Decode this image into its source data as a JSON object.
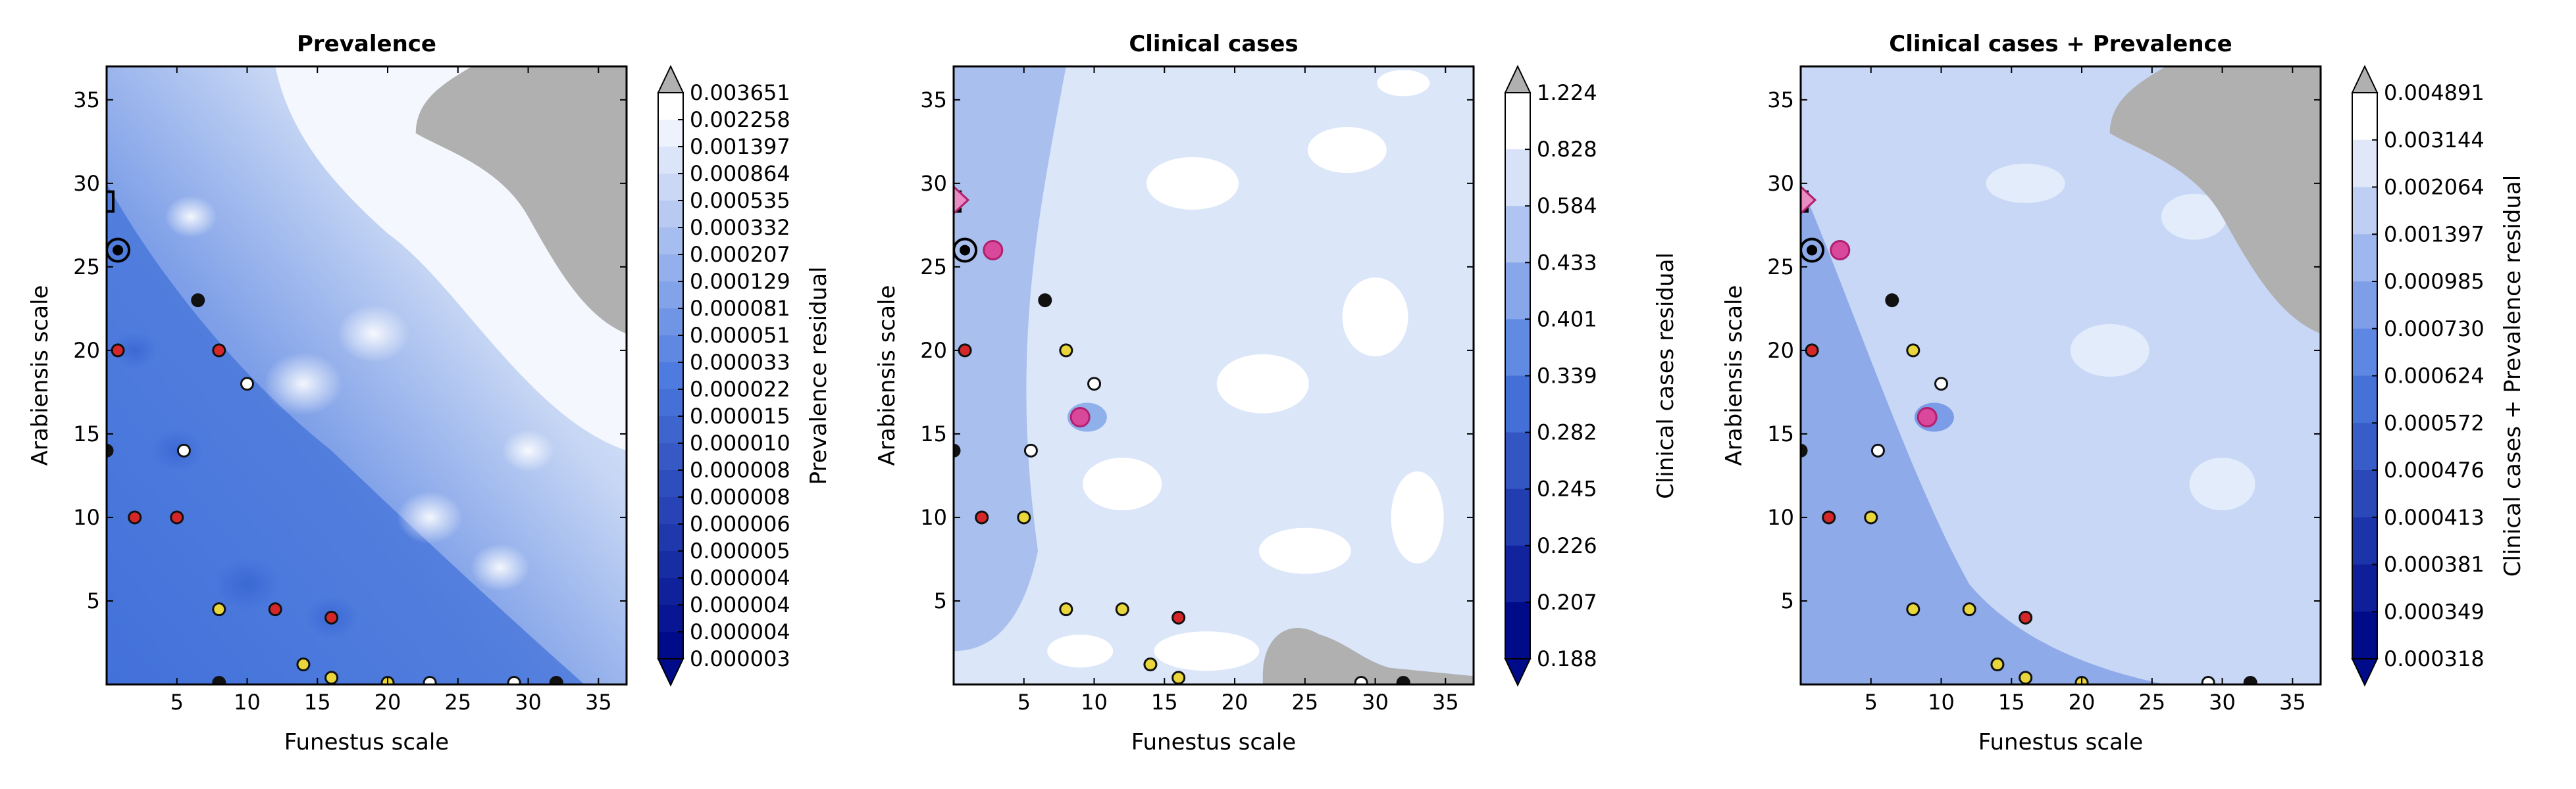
{
  "chart_data": [
    {
      "type": "heatmap",
      "title": "Prevalence",
      "xlabel": "Funestus scale",
      "ylabel": "Arabiensis scale",
      "xlim": [
        0,
        37
      ],
      "ylim": [
        0,
        37
      ],
      "xticks": [
        "5",
        "10",
        "15",
        "20",
        "25",
        "30",
        "35"
      ],
      "yticks": [
        "5",
        "10",
        "15",
        "20",
        "25",
        "30",
        "35"
      ],
      "colorbar_label": "Prevalence residual",
      "colorbar_ticks": [
        "0.003651",
        "0.002258",
        "0.001397",
        "0.000864",
        "0.000535",
        "0.000332",
        "0.000207",
        "0.000129",
        "0.000081",
        "0.000051",
        "0.000033",
        "0.000022",
        "0.000015",
        "0.000010",
        "0.000008",
        "0.000008",
        "0.000006",
        "0.000005",
        "0.000004",
        "0.000004",
        "0.000004",
        "0.000003"
      ],
      "colorbar_extend": "both",
      "pattern": "prev",
      "markers": [
        {
          "x": 8,
          "y": 20,
          "c": "red"
        },
        {
          "x": 6.5,
          "y": 23,
          "c": "black"
        },
        {
          "x": 10,
          "y": 18,
          "c": "white"
        },
        {
          "x": 5.5,
          "y": 14,
          "c": "white"
        },
        {
          "x": 2,
          "y": 10,
          "c": "red"
        },
        {
          "x": 5,
          "y": 10,
          "c": "red"
        },
        {
          "x": 8,
          "y": 4.5,
          "c": "yellow"
        },
        {
          "x": 12,
          "y": 4.5,
          "c": "red"
        },
        {
          "x": 16,
          "y": 4,
          "c": "red"
        },
        {
          "x": 14,
          "y": 1.2,
          "c": "yellow"
        },
        {
          "x": 16,
          "y": 0.4,
          "c": "yellow"
        },
        {
          "x": 0.8,
          "y": 20,
          "c": "red"
        },
        {
          "x": 0,
          "y": 14,
          "c": "black"
        },
        {
          "x": 20,
          "y": 0.1,
          "c": "yellow"
        },
        {
          "x": 29,
          "y": 0.1,
          "c": "white"
        },
        {
          "x": 32,
          "y": 0.1,
          "c": "black"
        },
        {
          "x": 23,
          "y": 0.1,
          "c": "white"
        },
        {
          "x": 8,
          "y": 0.1,
          "c": "black"
        }
      ]
    },
    {
      "type": "heatmap",
      "title": "Clinical cases",
      "xlabel": "Funestus scale",
      "ylabel": "Arabiensis scale",
      "xlim": [
        0,
        37
      ],
      "ylim": [
        0,
        37
      ],
      "xticks": [
        "5",
        "10",
        "15",
        "20",
        "25",
        "30",
        "35"
      ],
      "yticks": [
        "5",
        "10",
        "15",
        "20",
        "25",
        "30",
        "35"
      ],
      "colorbar_label": "Clinical cases residual",
      "colorbar_ticks": [
        "1.224",
        "0.828",
        "0.584",
        "0.433",
        "0.401",
        "0.339",
        "0.282",
        "0.245",
        "0.226",
        "0.207",
        "0.188"
      ],
      "colorbar_extend": "both",
      "pattern": "clin",
      "markers": [
        {
          "x": 6.5,
          "y": 23,
          "c": "black"
        },
        {
          "x": 8,
          "y": 20,
          "c": "yellow"
        },
        {
          "x": 10,
          "y": 18,
          "c": "white"
        },
        {
          "x": 5.5,
          "y": 14,
          "c": "white"
        },
        {
          "x": 9,
          "y": 16,
          "c": "magenta"
        },
        {
          "x": 2,
          "y": 10,
          "c": "red"
        },
        {
          "x": 5,
          "y": 10,
          "c": "yellow"
        },
        {
          "x": 8,
          "y": 4.5,
          "c": "yellow"
        },
        {
          "x": 12,
          "y": 4.5,
          "c": "yellow"
        },
        {
          "x": 16,
          "y": 4,
          "c": "red"
        },
        {
          "x": 14,
          "y": 1.2,
          "c": "yellow"
        },
        {
          "x": 16,
          "y": 0.4,
          "c": "yellow"
        },
        {
          "x": 0.8,
          "y": 20,
          "c": "red"
        },
        {
          "x": 0,
          "y": 14,
          "c": "black"
        },
        {
          "x": 2.8,
          "y": 26,
          "c": "magenta"
        },
        {
          "x": 32,
          "y": 0.1,
          "c": "black"
        },
        {
          "x": 29,
          "y": 0.1,
          "c": "white"
        }
      ]
    },
    {
      "type": "heatmap",
      "title": "Clinical cases + Prevalence",
      "xlabel": "Funestus scale",
      "ylabel": "Arabiensis scale",
      "xlim": [
        0,
        37
      ],
      "ylim": [
        0,
        37
      ],
      "xticks": [
        "5",
        "10",
        "15",
        "20",
        "25",
        "30",
        "35"
      ],
      "yticks": [
        "5",
        "10",
        "15",
        "20",
        "25",
        "30",
        "35"
      ],
      "colorbar_label": "Clinical cases + Prevalence residual",
      "colorbar_ticks": [
        "0.004891",
        "0.003144",
        "0.002064",
        "0.001397",
        "0.000985",
        "0.000730",
        "0.000624",
        "0.000572",
        "0.000476",
        "0.000413",
        "0.000381",
        "0.000349",
        "0.000318"
      ],
      "colorbar_extend": "both",
      "pattern": "comb",
      "markers": [
        {
          "x": 6.5,
          "y": 23,
          "c": "black"
        },
        {
          "x": 8,
          "y": 20,
          "c": "yellow"
        },
        {
          "x": 10,
          "y": 18,
          "c": "white"
        },
        {
          "x": 5.5,
          "y": 14,
          "c": "white"
        },
        {
          "x": 9,
          "y": 16,
          "c": "magenta"
        },
        {
          "x": 2,
          "y": 10,
          "c": "red"
        },
        {
          "x": 5,
          "y": 10,
          "c": "yellow"
        },
        {
          "x": 8,
          "y": 4.5,
          "c": "yellow"
        },
        {
          "x": 12,
          "y": 4.5,
          "c": "yellow"
        },
        {
          "x": 16,
          "y": 4,
          "c": "red"
        },
        {
          "x": 14,
          "y": 1.2,
          "c": "yellow"
        },
        {
          "x": 16,
          "y": 0.4,
          "c": "yellow"
        },
        {
          "x": 0.8,
          "y": 20,
          "c": "red"
        },
        {
          "x": 0,
          "y": 14,
          "c": "black"
        },
        {
          "x": 2.8,
          "y": 26,
          "c": "magenta"
        },
        {
          "x": 20,
          "y": 0.1,
          "c": "yellow"
        },
        {
          "x": 32,
          "y": 0.1,
          "c": "black"
        },
        {
          "x": 29,
          "y": 0.1,
          "c": "white"
        }
      ]
    }
  ],
  "colors": {
    "light": "#ffffff",
    "mid": "#4d7bdf",
    "dark": "#000b8a",
    "over_grey": "#b0b0b0",
    "marker_red": "#d62728",
    "marker_yellow": "#e8d63a",
    "marker_magenta": "#d9489b"
  }
}
